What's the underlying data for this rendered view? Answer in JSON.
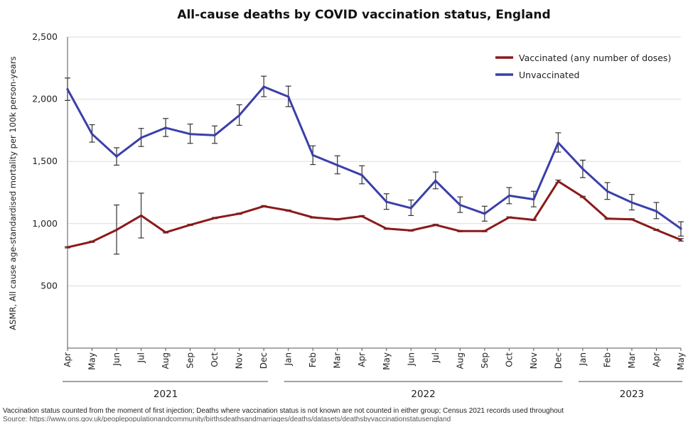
{
  "chart_data": {
    "type": "line",
    "title": "All-cause deaths by COVID vaccination status, England",
    "xlabel": "",
    "ylabel": "ASMR, All cause age-standardised mortality per 100k person-years",
    "ylim": [
      0,
      2500
    ],
    "yticks": [
      500,
      1000,
      1500,
      2000,
      2500
    ],
    "ytick_labels": [
      "500",
      "1,000",
      "1,500",
      "2,000",
      "2,500"
    ],
    "categories": [
      "Apr",
      "May",
      "Jun",
      "Jul",
      "Aug",
      "Sep",
      "Oct",
      "Nov",
      "Dec",
      "Jan",
      "Feb",
      "Mar",
      "Apr",
      "May",
      "Jun",
      "Jul",
      "Aug",
      "Sep",
      "Oct",
      "Nov",
      "Dec",
      "Jan",
      "Feb",
      "Mar",
      "Apr",
      "May"
    ],
    "years": [
      {
        "label": "2021",
        "start": 0,
        "end": 8
      },
      {
        "label": "2022",
        "start": 9,
        "end": 20
      },
      {
        "label": "2023",
        "start": 21,
        "end": 25
      }
    ],
    "grid": true,
    "legend_position": "top-right",
    "series": [
      {
        "name": "Vaccinated (any number of doses)",
        "color": "#8b1a1a",
        "values": [
          810,
          855,
          950,
          1065,
          930,
          990,
          1045,
          1080,
          1140,
          1105,
          1050,
          1035,
          1060,
          960,
          945,
          990,
          940,
          940,
          1050,
          1030,
          1340,
          1215,
          1040,
          1035,
          950,
          870
        ],
        "lower": [
          805,
          850,
          755,
          885,
          925,
          985,
          1040,
          1075,
          1135,
          1100,
          1045,
          1030,
          1055,
          955,
          940,
          985,
          935,
          935,
          1045,
          1025,
          1330,
          1210,
          1035,
          1030,
          945,
          860
        ],
        "upper": [
          815,
          860,
          1150,
          1245,
          935,
          995,
          1050,
          1085,
          1145,
          1110,
          1055,
          1040,
          1065,
          965,
          950,
          995,
          945,
          945,
          1055,
          1035,
          1350,
          1220,
          1045,
          1040,
          955,
          880
        ]
      },
      {
        "name": "Unvaccinated",
        "color": "#3b3fa8",
        "values": [
          2080,
          1720,
          1540,
          1690,
          1770,
          1720,
          1710,
          1870,
          2100,
          2020,
          1550,
          1470,
          1390,
          1175,
          1125,
          1345,
          1150,
          1080,
          1225,
          1195,
          1650,
          1440,
          1260,
          1170,
          1100,
          960
        ],
        "lower": [
          1990,
          1655,
          1470,
          1620,
          1700,
          1645,
          1645,
          1790,
          2020,
          1940,
          1475,
          1400,
          1320,
          1115,
          1065,
          1280,
          1090,
          1020,
          1160,
          1135,
          1575,
          1370,
          1195,
          1110,
          1040,
          900
        ],
        "upper": [
          2170,
          1795,
          1610,
          1765,
          1845,
          1800,
          1785,
          1955,
          2185,
          2105,
          1625,
          1545,
          1465,
          1240,
          1190,
          1415,
          1215,
          1140,
          1290,
          1260,
          1730,
          1510,
          1330,
          1235,
          1170,
          1015
        ]
      }
    ],
    "footnote": "Vaccination status counted from the moment of first injection; Deaths where vaccination status is not known are not counted in either group; Census 2021 records used throughout",
    "source": "Source: https://www.ons.gov.uk/peoplepopulationandcommunity/birthsdeathsandmarriages/deaths/datasets/deathsbyvaccinationstatusengland"
  },
  "colors": {
    "vaccinated": "#8b1a1a",
    "unvaccinated": "#3b3fa8",
    "grid": "#dcdcdc",
    "axis": "#555555"
  }
}
